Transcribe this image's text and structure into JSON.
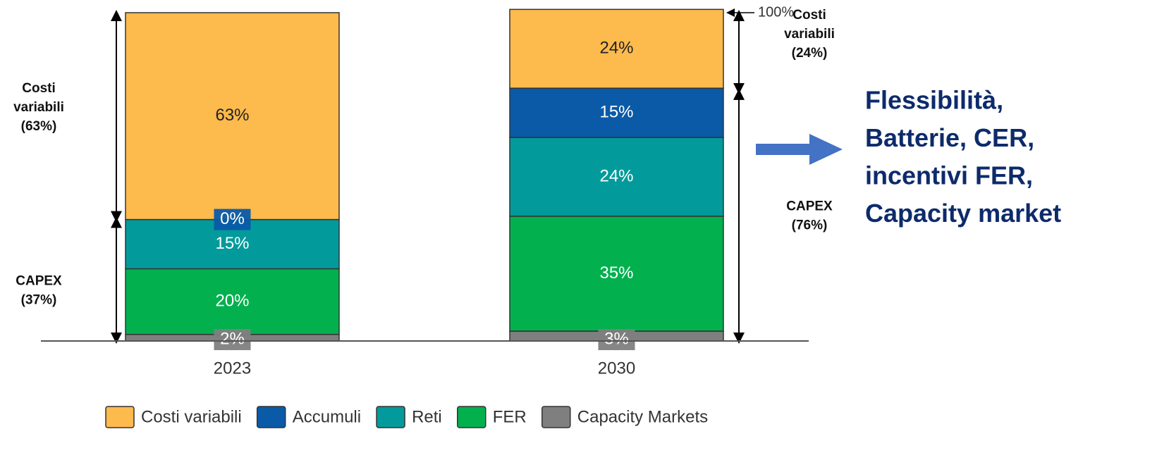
{
  "chart_data": {
    "type": "stacked_bar",
    "categories": [
      "2023",
      "2030"
    ],
    "series": [
      {
        "name": "Costi variabili",
        "color": "#FDBA4D",
        "values": [
          63,
          24
        ],
        "value_labels": [
          "63%",
          "24%"
        ]
      },
      {
        "name": "Accumuli",
        "color": "#0A5AA8",
        "values": [
          0,
          15
        ],
        "value_labels": [
          "0%",
          "15%"
        ]
      },
      {
        "name": "Reti",
        "color": "#039A9B",
        "values": [
          15,
          24
        ],
        "value_labels": [
          "15%",
          "24%"
        ]
      },
      {
        "name": "FER",
        "color": "#03B04E",
        "values": [
          20,
          35
        ],
        "value_labels": [
          "20%",
          "35%"
        ]
      },
      {
        "name": "Capacity Markets",
        "color": "#7F7F7F",
        "values": [
          2,
          3
        ],
        "value_labels": [
          "2%",
          "3%"
        ]
      }
    ],
    "ylim": [
      0,
      100
    ],
    "top_marker": {
      "value": 100,
      "label": "100%"
    },
    "brackets": [
      [
        {
          "lines": [
            "Costi",
            "variabili",
            "(63%)"
          ]
        },
        {
          "lines": [
            "CAPEX",
            "(37%)"
          ]
        }
      ],
      [
        {
          "lines": [
            "Costi",
            "variabili",
            "(24%)"
          ]
        },
        {
          "lines": [
            "CAPEX",
            "(76%)"
          ]
        }
      ]
    ],
    "callout": {
      "lines": [
        "Flessibilità,",
        "Batterie, CER,",
        "incentivi FER,",
        "Capacity market"
      ],
      "color": "#0D2B6B",
      "arrow_color": "#4472C4"
    }
  }
}
